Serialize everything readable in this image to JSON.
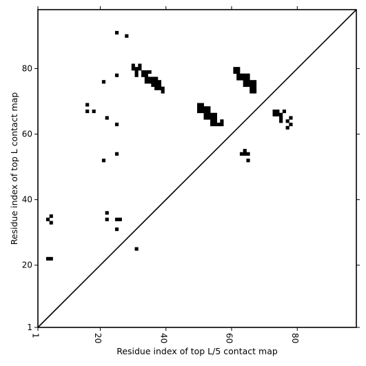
{
  "chart_data": {
    "type": "heatmap",
    "title": "",
    "xlabel": "Residue index of top L/5 contact map",
    "ylabel": "Residue index of top L contact map",
    "xlim": [
      1,
      98
    ],
    "ylim": [
      1,
      98
    ],
    "xticks": [
      1,
      20,
      40,
      60,
      80
    ],
    "yticks": [
      1,
      20,
      40,
      60,
      80
    ],
    "xtick_labels": [
      "1",
      "20",
      "40",
      "60",
      "80"
    ],
    "ytick_labels": [
      "1",
      "20",
      "40",
      "60",
      "80"
    ],
    "diagonal": true,
    "grid": false,
    "cell_color": "#000000",
    "line_color": "#000000",
    "upper_triangle_cells": [
      [
        25,
        91
      ],
      [
        28,
        90
      ],
      [
        25,
        78
      ],
      [
        21,
        76
      ],
      [
        16,
        69
      ],
      [
        16,
        67
      ],
      [
        18,
        67
      ],
      [
        22,
        65
      ],
      [
        25,
        63
      ],
      [
        25,
        54
      ],
      [
        21,
        52
      ],
      [
        30,
        81
      ],
      [
        30,
        80
      ],
      [
        31,
        80
      ],
      [
        32,
        81
      ],
      [
        32,
        80
      ],
      [
        31,
        79
      ],
      [
        31,
        78
      ],
      [
        33,
        79
      ],
      [
        33,
        78
      ],
      [
        34,
        79
      ],
      [
        35,
        79
      ],
      [
        34,
        78
      ],
      [
        34,
        77
      ],
      [
        35,
        77
      ],
      [
        36,
        77
      ],
      [
        34,
        76
      ],
      [
        35,
        76
      ],
      [
        36,
        76
      ],
      [
        37,
        77
      ],
      [
        37,
        76
      ],
      [
        36,
        75
      ],
      [
        37,
        75
      ],
      [
        38,
        76
      ],
      [
        38,
        75
      ],
      [
        37,
        74
      ],
      [
        38,
        74
      ],
      [
        39,
        74
      ],
      [
        39,
        73
      ],
      [
        5,
        35
      ],
      [
        4,
        34
      ],
      [
        5,
        33
      ],
      [
        22,
        36
      ],
      [
        22,
        34
      ],
      [
        25,
        34
      ],
      [
        26,
        34
      ],
      [
        25,
        31
      ],
      [
        31,
        25
      ],
      [
        4,
        22
      ],
      [
        5,
        22
      ]
    ],
    "lower_triangle_cells": [
      [
        50,
        69
      ],
      [
        51,
        69
      ],
      [
        50,
        68
      ],
      [
        51,
        68
      ],
      [
        52,
        68
      ],
      [
        53,
        68
      ],
      [
        50,
        67
      ],
      [
        51,
        67
      ],
      [
        52,
        67
      ],
      [
        53,
        67
      ],
      [
        52,
        66
      ],
      [
        53,
        66
      ],
      [
        54,
        66
      ],
      [
        55,
        66
      ],
      [
        52,
        65
      ],
      [
        53,
        65
      ],
      [
        54,
        65
      ],
      [
        55,
        65
      ],
      [
        54,
        64
      ],
      [
        55,
        64
      ],
      [
        57,
        64
      ],
      [
        54,
        63
      ],
      [
        55,
        63
      ],
      [
        56,
        63
      ],
      [
        57,
        63
      ],
      [
        61,
        80
      ],
      [
        62,
        80
      ],
      [
        61,
        79
      ],
      [
        62,
        79
      ],
      [
        62,
        78
      ],
      [
        63,
        78
      ],
      [
        64,
        78
      ],
      [
        65,
        78
      ],
      [
        62,
        77
      ],
      [
        63,
        77
      ],
      [
        64,
        77
      ],
      [
        65,
        77
      ],
      [
        64,
        76
      ],
      [
        65,
        76
      ],
      [
        66,
        76
      ],
      [
        67,
        76
      ],
      [
        64,
        75
      ],
      [
        65,
        75
      ],
      [
        66,
        75
      ],
      [
        67,
        75
      ],
      [
        66,
        74
      ],
      [
        67,
        74
      ],
      [
        66,
        73
      ],
      [
        67,
        73
      ],
      [
        73,
        67
      ],
      [
        74,
        67
      ],
      [
        76,
        67
      ],
      [
        73,
        66
      ],
      [
        74,
        66
      ],
      [
        75,
        66
      ],
      [
        75,
        65
      ],
      [
        78,
        65
      ],
      [
        75,
        64
      ],
      [
        77,
        64
      ],
      [
        78,
        63
      ],
      [
        77,
        62
      ],
      [
        64,
        55
      ],
      [
        63,
        54
      ],
      [
        64,
        54
      ],
      [
        65,
        54
      ],
      [
        65,
        52
      ]
    ]
  }
}
